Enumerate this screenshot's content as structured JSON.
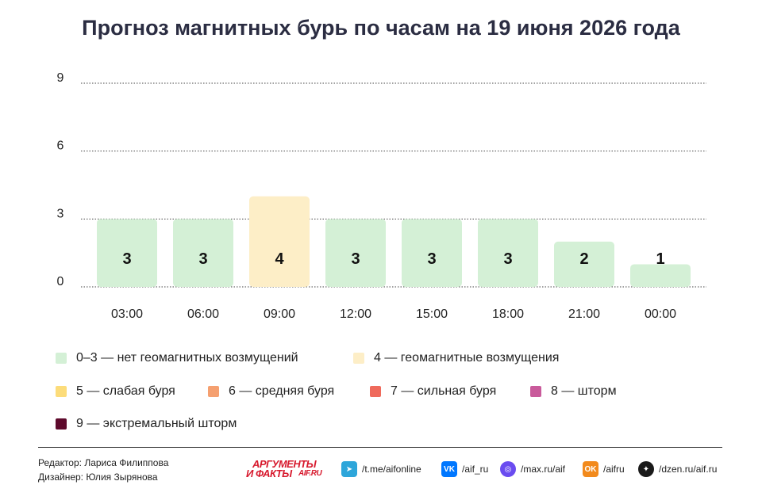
{
  "title": "Прогноз магнитных бурь по часам на 19 июня 2026 года",
  "chart_data": {
    "type": "bar",
    "categories": [
      "03:00",
      "06:00",
      "09:00",
      "12:00",
      "15:00",
      "18:00",
      "21:00",
      "00:00"
    ],
    "values": [
      3,
      3,
      4,
      3,
      3,
      3,
      2,
      1
    ],
    "y_ticks": [
      0,
      3,
      6,
      9
    ],
    "ylim": [
      0,
      9
    ],
    "grid": true,
    "xlabel": "",
    "ylabel": "",
    "bar_colors": [
      "#d4f0d6",
      "#d4f0d6",
      "#fdeec7",
      "#d4f0d6",
      "#d4f0d6",
      "#d4f0d6",
      "#d4f0d6",
      "#d4f0d6"
    ]
  },
  "legend": [
    {
      "label": "0–3 — нет геомагнитных возмущений",
      "color": "#d4f0d6"
    },
    {
      "label": "4 — геомагнитные возмущения",
      "color": "#fdeec7"
    },
    {
      "label": "5 — слабая буря",
      "color": "#fcdc7a"
    },
    {
      "label": "6 — средняя буря",
      "color": "#f5a070"
    },
    {
      "label": "7 — сильная буря",
      "color": "#ef6a5c"
    },
    {
      "label": "8 — шторм",
      "color": "#c95a9b"
    },
    {
      "label": "9 — экстремальный шторм",
      "color": "#5e0a2c"
    }
  ],
  "footer": {
    "editor": "Редактор: Лариса Филиппова",
    "designer": "Дизайнер: Юлия Зырянова",
    "logo": {
      "line1": "АРГУМЕНТЫ",
      "line2": "И ФАКТЫ",
      "line3": "AIF.RU"
    },
    "social": [
      {
        "icon": "telegram-icon",
        "glyph": "➤",
        "label": "/t.me/aifonline",
        "color": "#2ea6da"
      },
      {
        "icon": "vk-icon",
        "glyph": "VK",
        "label": "/aif_ru",
        "color": "#0077ff"
      },
      {
        "icon": "max-icon",
        "glyph": "◎",
        "label": "/max.ru/aif",
        "color": "#6a4cf0"
      },
      {
        "icon": "odnoklassniki-icon",
        "glyph": "OK",
        "label": "/aifru",
        "color": "#f28a1c"
      },
      {
        "icon": "dzen-icon",
        "glyph": "✦",
        "label": "/dzen.ru/aif.ru",
        "color": "#1a1a1a"
      }
    ]
  }
}
